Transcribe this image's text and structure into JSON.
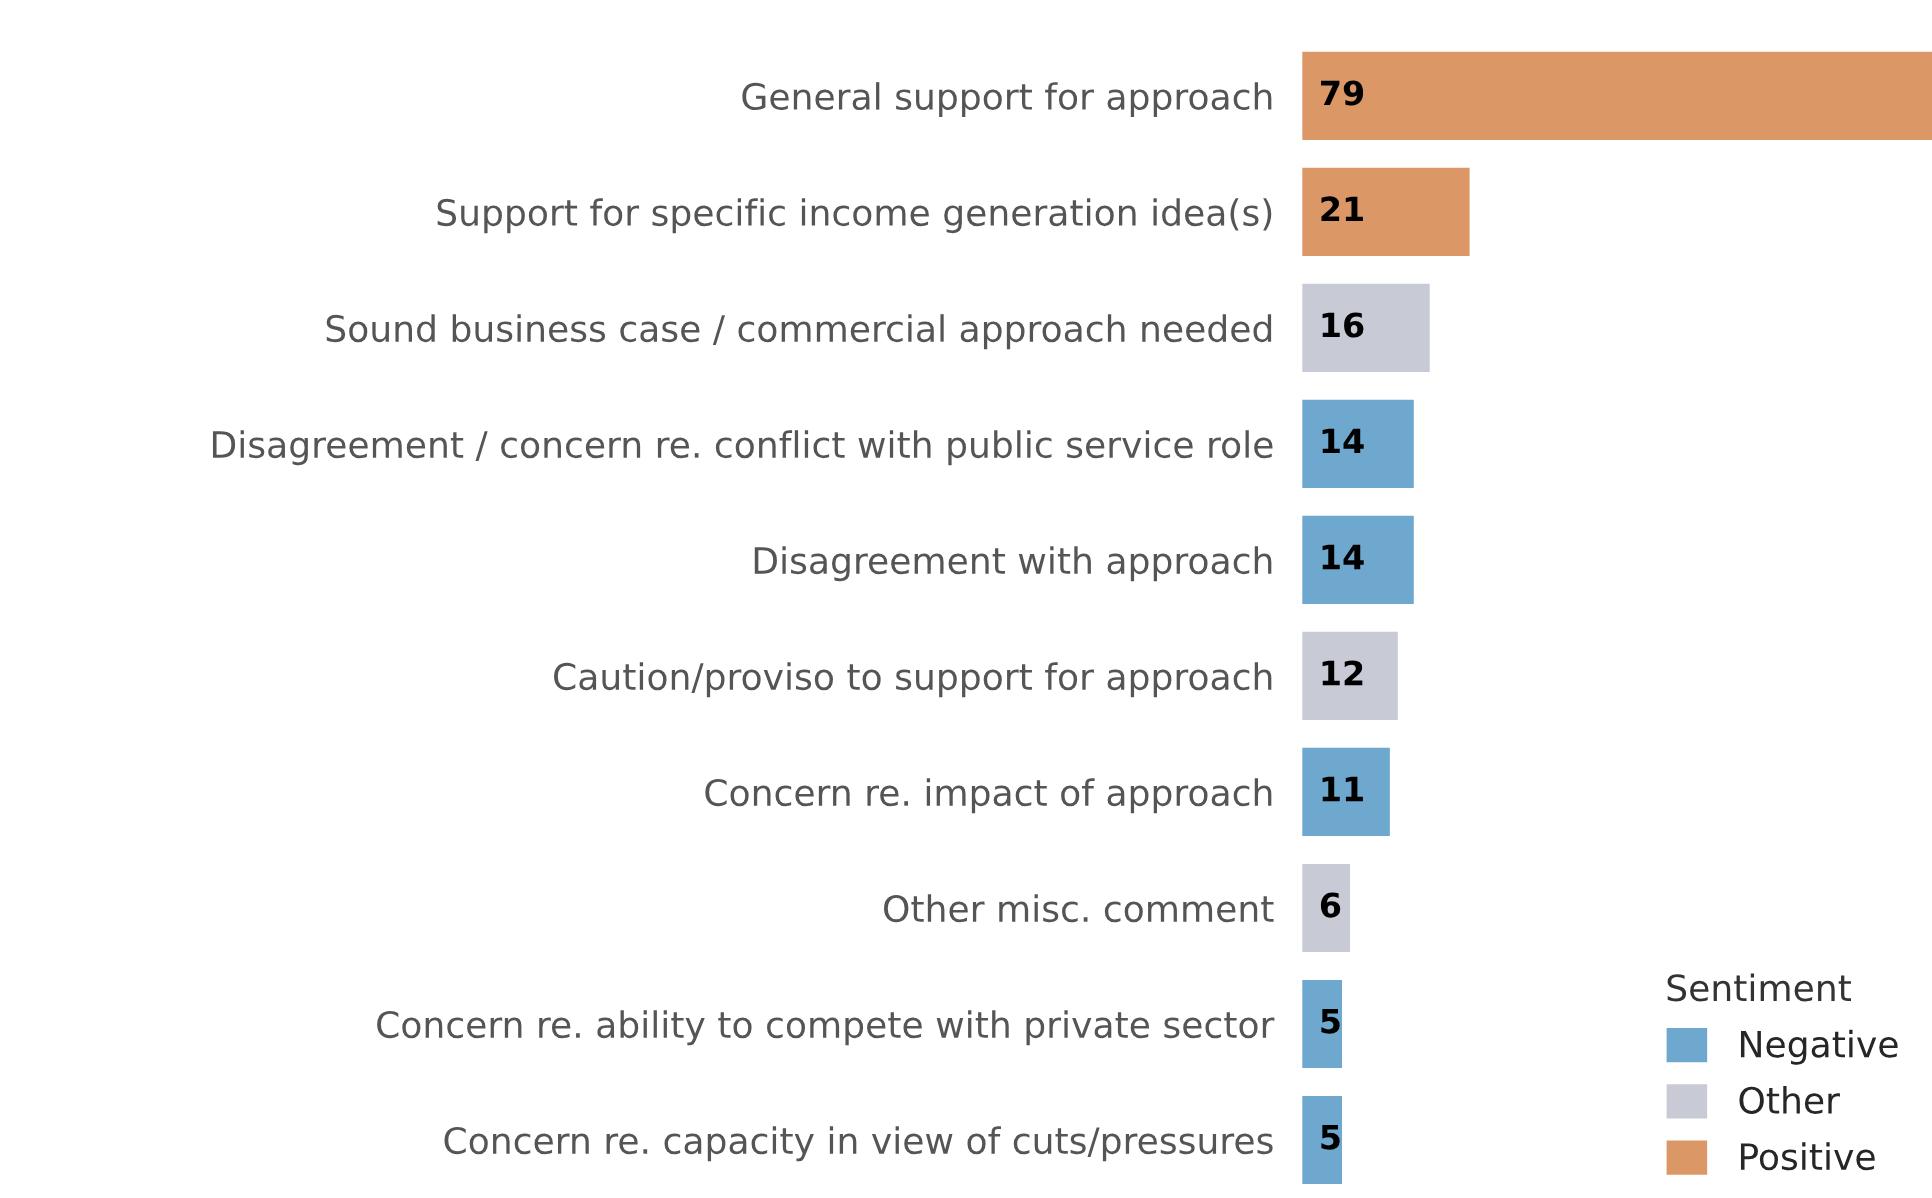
{
  "chart_data": {
    "type": "bar",
    "orientation": "horizontal",
    "categories": [
      "General support for approach",
      "Support for specific income generation idea(s)",
      "Sound business case / commercial approach needed",
      "Disagreement / concern re. conflict with public service role",
      "Disagreement with approach",
      "Caution/proviso to support for approach",
      "Concern re. impact of approach",
      "Other misc. comment",
      "Concern re. ability to compete with private sector",
      "Concern re. capacity in view of cuts/pressures"
    ],
    "series": [
      {
        "name": "Negative",
        "color": "#6fa8cf",
        "values": [
          null,
          null,
          null,
          14,
          14,
          null,
          11,
          null,
          5,
          5
        ]
      },
      {
        "name": "Other",
        "color": "#c8cbd6",
        "values": [
          null,
          null,
          16,
          null,
          null,
          12,
          null,
          6,
          null,
          null
        ]
      },
      {
        "name": "Positive",
        "color": "#dc9766",
        "values": [
          79,
          21,
          null,
          null,
          null,
          null,
          null,
          null,
          null,
          null
        ]
      }
    ],
    "legend_title": "Sentiment",
    "legend": "bottom right",
    "data_labels": true,
    "tick_labels": "y"
  }
}
